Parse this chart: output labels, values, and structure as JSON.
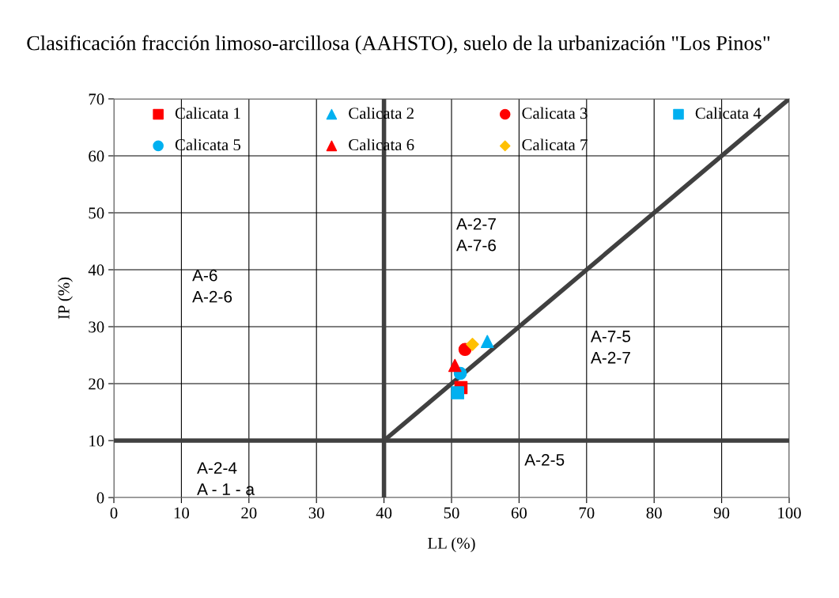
{
  "chart_data": {
    "type": "scatter",
    "title": "Clasificación fracción limoso-arcillosa (AAHSTO), suelo de la urbanización \"Los Pinos\"",
    "xlabel": "LL (%)",
    "ylabel": "IP (%)",
    "xlim": [
      0,
      100
    ],
    "xticks": [
      0,
      10,
      20,
      30,
      40,
      50,
      60,
      70,
      80,
      90,
      100
    ],
    "ylim": [
      0,
      70
    ],
    "yticks": [
      0,
      10,
      20,
      30,
      40,
      50,
      60,
      70
    ],
    "grid": true,
    "legend": "top",
    "series": [
      {
        "name": "Calicata 1",
        "color": "#ff0000",
        "marker": "square",
        "x": [
          51.4
        ],
        "values": [
          19.3
        ]
      },
      {
        "name": "Calicata 2",
        "color": "#00b0f0",
        "marker": "triangle",
        "x": [
          55.3
        ],
        "values": [
          27.4
        ]
      },
      {
        "name": "Calicata 3",
        "color": "#ff0000",
        "marker": "circle",
        "x": [
          52.0
        ],
        "values": [
          26.0
        ]
      },
      {
        "name": "Calicata 4",
        "color": "#00b0f0",
        "marker": "square",
        "x": [
          50.9
        ],
        "values": [
          18.4
        ]
      },
      {
        "name": "Calicata 5",
        "color": "#00b0f0",
        "marker": "circle",
        "x": [
          51.3
        ],
        "values": [
          21.8
        ]
      },
      {
        "name": "Calicata 6",
        "color": "#ff0000",
        "marker": "triangle",
        "x": [
          50.5
        ],
        "values": [
          23.2
        ]
      },
      {
        "name": "Calicata 7",
        "color": "#ffc000",
        "marker": "diamond",
        "x": [
          53.1
        ],
        "values": [
          26.9
        ]
      },
      {
        "type": "line",
        "color": "#404040",
        "marker": "none",
        "x": [
          40,
          40
        ],
        "values": [
          0,
          70
        ]
      },
      {
        "type": "line",
        "color": "#404040",
        "marker": "none",
        "x": [
          0,
          100
        ],
        "values": [
          10,
          10
        ]
      },
      {
        "type": "line",
        "color": "#404040",
        "marker": "none",
        "x": [
          40,
          100
        ],
        "values": [
          10,
          70
        ]
      }
    ],
    "annotations": [
      "A-2-7\nA-7-6",
      "A-6\nA-2-6",
      "A-7-5\nA-2-7",
      "A-2-5",
      "A-2-4\nA - 1 - a"
    ]
  }
}
